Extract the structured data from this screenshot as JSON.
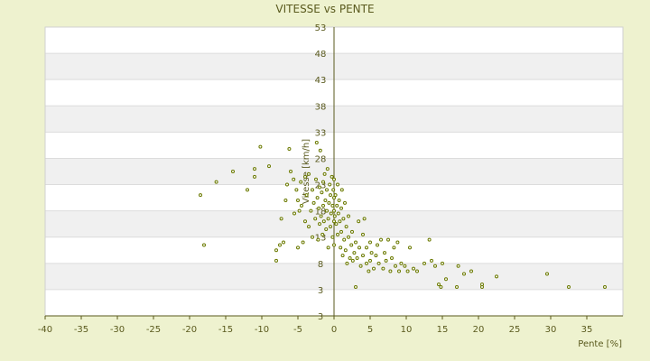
{
  "chart_data": {
    "type": "scatter",
    "title": "VITESSE vs PENTE",
    "xlabel": "Pente [%]",
    "ylabel": "Vitesse [km/h]",
    "xlim": [
      -40,
      40
    ],
    "ylim": [
      -2,
      53
    ],
    "x_ticks": [
      -40,
      -35,
      -30,
      -25,
      -20,
      -15,
      -10,
      -5,
      0,
      5,
      10,
      15,
      20,
      25,
      30,
      35
    ],
    "x_tick_labels": [
      "-40",
      "-35",
      "-30",
      "-25",
      "-20",
      "-15",
      "-10",
      "-5",
      "0",
      "5",
      "10",
      "15",
      "20",
      "25",
      "30",
      "35"
    ],
    "y_ticks": [
      3,
      8,
      13,
      18,
      23,
      28,
      33,
      38,
      43,
      48,
      53
    ],
    "y_tick_labels": [
      "3",
      "8",
      "13",
      "18",
      "23",
      "28",
      "33",
      "38",
      "43",
      "48",
      "53"
    ],
    "y_bottom_label": "3",
    "grid": true,
    "colors": {
      "background": "#eef2cf",
      "plot_bg": "#ffffff",
      "band": "#f0f0f0",
      "marker": "#6b7a00",
      "axis": "#5a5a1e"
    },
    "points": [
      [
        -18.5,
        21
      ],
      [
        -18,
        11.5
      ],
      [
        -16.3,
        23.5
      ],
      [
        -14,
        25.5
      ],
      [
        -12,
        22
      ],
      [
        -11,
        26
      ],
      [
        -11,
        24.5
      ],
      [
        -10.2,
        30.2
      ],
      [
        -9,
        26.5
      ],
      [
        -8,
        8.5
      ],
      [
        -8,
        10.5
      ],
      [
        -7.5,
        11.5
      ],
      [
        -7.3,
        16.5
      ],
      [
        -7,
        12
      ],
      [
        -6.7,
        20
      ],
      [
        -6.5,
        23
      ],
      [
        -6.2,
        29.8
      ],
      [
        -6,
        25.5
      ],
      [
        -5.6,
        24
      ],
      [
        -5.5,
        17.5
      ],
      [
        -5.2,
        22
      ],
      [
        -5,
        20
      ],
      [
        -5,
        11
      ],
      [
        -4.8,
        18
      ],
      [
        -4.6,
        23.5
      ],
      [
        -4.5,
        19
      ],
      [
        -4.3,
        12
      ],
      [
        -4,
        16
      ],
      [
        -4,
        24.5
      ],
      [
        -3.8,
        21
      ],
      [
        -3.5,
        25
      ],
      [
        -3.5,
        15
      ],
      [
        -3.2,
        18
      ],
      [
        -3,
        22
      ],
      [
        -3,
        13
      ],
      [
        -2.8,
        19.5
      ],
      [
        -2.6,
        16.5
      ],
      [
        -2.5,
        24
      ],
      [
        -2.4,
        31
      ],
      [
        -2.3,
        20.5
      ],
      [
        -2.2,
        12.5
      ],
      [
        -2.1,
        18.5
      ],
      [
        -2,
        15.5
      ],
      [
        -2,
        22.5
      ],
      [
        -1.9,
        29.5
      ],
      [
        -1.8,
        17
      ],
      [
        -1.7,
        21.5
      ],
      [
        -1.6,
        13.5
      ],
      [
        -1.5,
        19
      ],
      [
        -1.5,
        23.5
      ],
      [
        -1.4,
        16
      ],
      [
        -1.3,
        25
      ],
      [
        -1.2,
        20
      ],
      [
        -1.1,
        14.5
      ],
      [
        -1,
        18
      ],
      [
        -1,
        22
      ],
      [
        -0.9,
        26
      ],
      [
        -0.8,
        16.5
      ],
      [
        -0.8,
        11
      ],
      [
        -0.7,
        19.5
      ],
      [
        -0.6,
        23
      ],
      [
        -0.5,
        15
      ],
      [
        -0.5,
        21
      ],
      [
        -0.4,
        17.5
      ],
      [
        -0.3,
        24.5
      ],
      [
        -0.2,
        19
      ],
      [
        -0.2,
        13
      ],
      [
        -0.1,
        22
      ],
      [
        0,
        18
      ],
      [
        0,
        20.5
      ],
      [
        0,
        16
      ],
      [
        0,
        11.5
      ],
      [
        0,
        24
      ],
      [
        0.1,
        17
      ],
      [
        0.2,
        21
      ],
      [
        0.3,
        15.5
      ],
      [
        0.4,
        19
      ],
      [
        0.5,
        23
      ],
      [
        0.5,
        13.5
      ],
      [
        0.6,
        17.5
      ],
      [
        0.7,
        20
      ],
      [
        0.8,
        16
      ],
      [
        0.9,
        11
      ],
      [
        1,
        18.5
      ],
      [
        1,
        14
      ],
      [
        1.1,
        22
      ],
      [
        1.2,
        9.5
      ],
      [
        1.3,
        16.5
      ],
      [
        1.4,
        12.5
      ],
      [
        1.5,
        19.5
      ],
      [
        1.6,
        10.5
      ],
      [
        1.7,
        15
      ],
      [
        1.8,
        8
      ],
      [
        2,
        13
      ],
      [
        2,
        17
      ],
      [
        2.2,
        9
      ],
      [
        2.4,
        11.5
      ],
      [
        2.5,
        14
      ],
      [
        2.6,
        8.5
      ],
      [
        2.8,
        10
      ],
      [
        3,
        12
      ],
      [
        3,
        3.5
      ],
      [
        3.2,
        9
      ],
      [
        3.4,
        16
      ],
      [
        3.5,
        11
      ],
      [
        3.7,
        7.5
      ],
      [
        4,
        13.5
      ],
      [
        4,
        9.5
      ],
      [
        4.2,
        16.5
      ],
      [
        4.5,
        8
      ],
      [
        4.5,
        11
      ],
      [
        4.8,
        6.5
      ],
      [
        5,
        12
      ],
      [
        5,
        8.5
      ],
      [
        5.2,
        10
      ],
      [
        5.5,
        7
      ],
      [
        5.8,
        9.5
      ],
      [
        6,
        11.5
      ],
      [
        6.2,
        8
      ],
      [
        6.5,
        12.5
      ],
      [
        6.8,
        7
      ],
      [
        7,
        10
      ],
      [
        7.2,
        8.5
      ],
      [
        7.5,
        12.5
      ],
      [
        7.8,
        6.5
      ],
      [
        8,
        9
      ],
      [
        8.3,
        11
      ],
      [
        8.5,
        7.5
      ],
      [
        8.8,
        12
      ],
      [
        9,
        6.5
      ],
      [
        9.3,
        8
      ],
      [
        9.8,
        7.5
      ],
      [
        10.2,
        6.5
      ],
      [
        10.5,
        11
      ],
      [
        11,
        7
      ],
      [
        11.5,
        6.5
      ],
      [
        12.5,
        8
      ],
      [
        13.2,
        12.5
      ],
      [
        13.5,
        8.5
      ],
      [
        14,
        7.5
      ],
      [
        14.5,
        4
      ],
      [
        14.8,
        3.5
      ],
      [
        15,
        8
      ],
      [
        15.5,
        5
      ],
      [
        17,
        3.5
      ],
      [
        17.2,
        7.5
      ],
      [
        18,
        6
      ],
      [
        19,
        6.5
      ],
      [
        20.5,
        4
      ],
      [
        20.5,
        3.5
      ],
      [
        22.5,
        5.5
      ],
      [
        29.5,
        6
      ],
      [
        32.5,
        3.5
      ],
      [
        37.5,
        3.5
      ]
    ]
  }
}
